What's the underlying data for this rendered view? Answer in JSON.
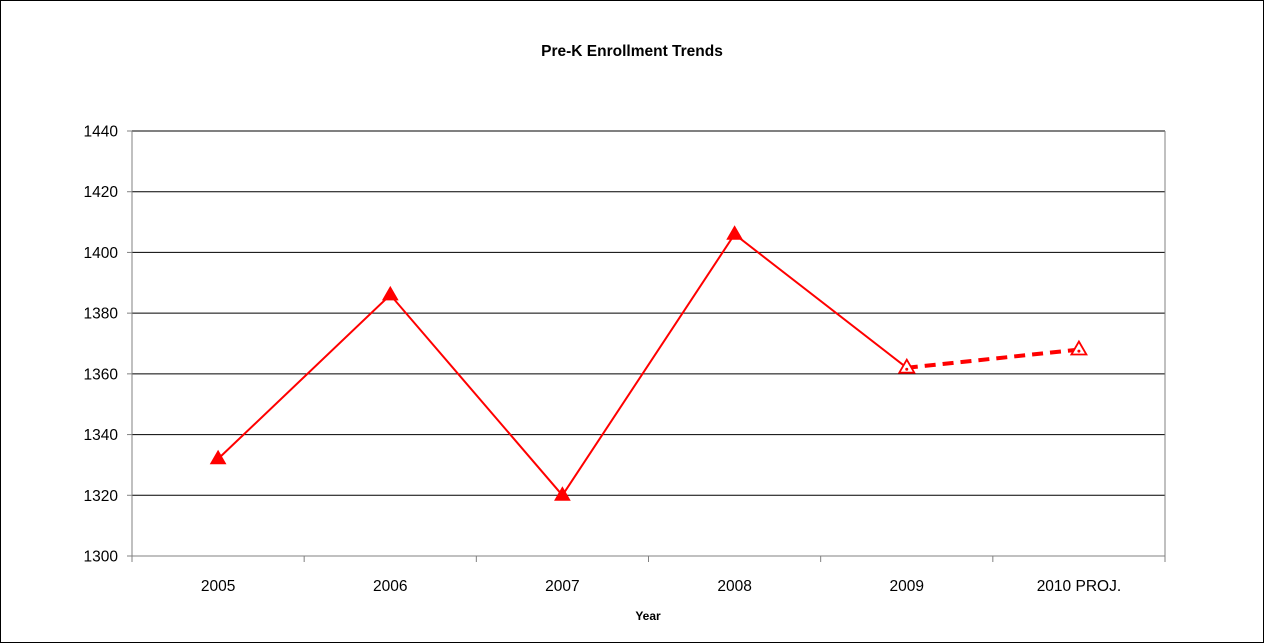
{
  "chart_data": {
    "type": "line",
    "title": "Pre-K Enrollment Trends",
    "xlabel": "Year",
    "ylabel": "",
    "categories": [
      "2005",
      "2006",
      "2007",
      "2008",
      "2009",
      "2010 PROJ."
    ],
    "series": [
      {
        "values": [
          1332,
          1386,
          1320,
          1406,
          1362,
          null
        ],
        "style": "solid",
        "marker": "filled-triangle"
      },
      {
        "values": [
          null,
          null,
          null,
          null,
          1362,
          1368
        ],
        "style": "dashed",
        "marker": "hollow-triangle"
      }
    ],
    "ylim": [
      1300,
      1440
    ],
    "yticks": [
      1300,
      1320,
      1340,
      1360,
      1380,
      1400,
      1420,
      1440
    ],
    "grid": true,
    "legend": "none",
    "colors": {
      "series": "#ff0000",
      "grid": "#000000",
      "axis": "#808080"
    }
  }
}
